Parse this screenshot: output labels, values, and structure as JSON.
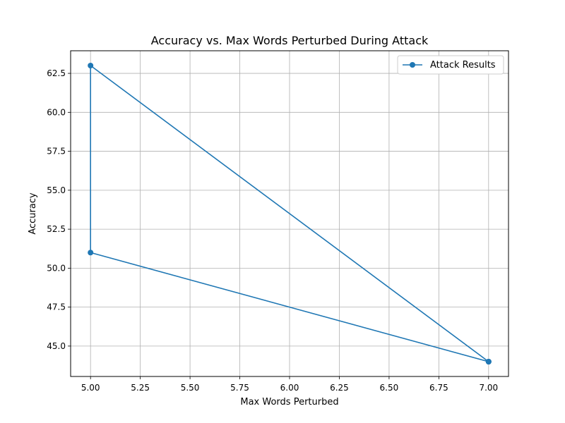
{
  "chart_data": {
    "type": "line",
    "title": "Accuracy vs. Max Words Perturbed During Attack",
    "xlabel": "Max Words Perturbed",
    "ylabel": "Accuracy",
    "xlim": [
      4.9,
      7.1
    ],
    "ylim": [
      43.05,
      63.95
    ],
    "xticks": [
      5.0,
      5.25,
      5.5,
      5.75,
      6.0,
      6.25,
      6.5,
      6.75,
      7.0
    ],
    "xtick_labels": [
      "5.00",
      "5.25",
      "5.50",
      "5.75",
      "6.00",
      "6.25",
      "6.50",
      "6.75",
      "7.00"
    ],
    "yticks": [
      45.0,
      47.5,
      50.0,
      52.5,
      55.0,
      57.5,
      60.0,
      62.5
    ],
    "ytick_labels": [
      "45.0",
      "47.5",
      "50.0",
      "52.5",
      "55.0",
      "57.5",
      "60.0",
      "62.5"
    ],
    "grid": true,
    "legend_position": "top-right",
    "series": [
      {
        "name": "Attack Results",
        "color": "#1f77b4",
        "marker": "circle",
        "x": [
          7,
          7,
          5,
          5,
          7
        ],
        "y": [
          44,
          44,
          51,
          63,
          44
        ]
      }
    ]
  }
}
